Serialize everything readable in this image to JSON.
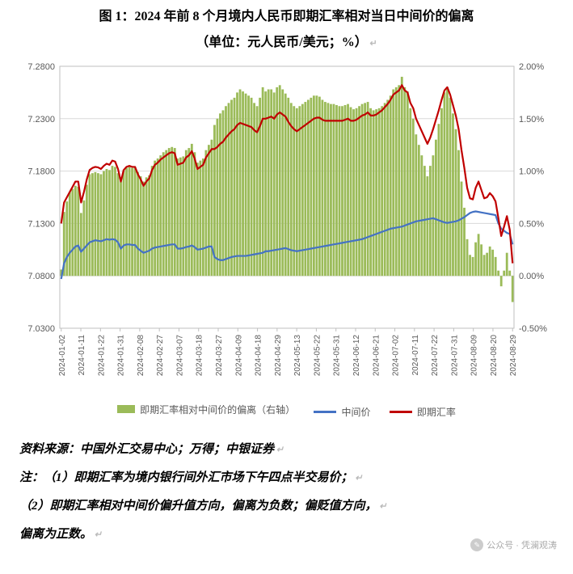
{
  "title": "图 1：2024 年前 8 个月境内人民币即期汇率相对当日中间价的偏离",
  "subtitle": "（单位：元人民币/美元；%）",
  "chart": {
    "type": "combo-bar-line-dual-axis",
    "background_color": "#ffffff",
    "grid_color": "#d9d9d9",
    "border_color": "#bfbfbf",
    "title_fontsize": 16,
    "axis_fontsize": 11,
    "x_label_fontsize": 10,
    "x_label_rotation": -90,
    "y_left": {
      "min": 7.03,
      "max": 7.28,
      "step": 0.05,
      "ticks": [
        "7.0300",
        "7.0800",
        "7.1300",
        "7.1800",
        "7.2300",
        "7.2800"
      ]
    },
    "y_right": {
      "min": -0.5,
      "max": 2.0,
      "step": 0.5,
      "ticks": [
        "-0.50%",
        "0.00%",
        "0.50%",
        "1.00%",
        "1.50%",
        "2.00%"
      ]
    },
    "x_ticks": [
      "2024-01-02",
      "2024-01-11",
      "2024-01-22",
      "2024-01-31",
      "2024-02-08",
      "2024-02-27",
      "2024-03-07",
      "2024-03-18",
      "2024-03-27",
      "2024-04-09",
      "2024-04-18",
      "2024-04-29",
      "2024-05-13",
      "2024-05-22",
      "2024-05-31",
      "2024-06-12",
      "2024-06-21",
      "2024-07-02",
      "2024-07-11",
      "2024-07-22",
      "2024-07-31",
      "2024-08-09",
      "2024-08-20",
      "2024-08-29"
    ],
    "legend": {
      "items": [
        {
          "label": "即期汇率相对中间价的偏离（右轴）",
          "type": "bar",
          "color": "#9bbb59"
        },
        {
          "label": "中间价",
          "type": "line",
          "color": "#4472c4"
        },
        {
          "label": "即期汇率",
          "type": "line",
          "color": "#c00000"
        }
      ]
    },
    "series": {
      "deviation_bars": {
        "color": "#9bbb59",
        "bar_width": 2.8,
        "values": [
          0.06,
          0.61,
          0.71,
          0.8,
          0.83,
          0.86,
          0.85,
          0.6,
          0.72,
          0.87,
          0.97,
          0.98,
          0.99,
          0.98,
          0.97,
          1.0,
          1.02,
          1.01,
          1.05,
          1.04,
          0.98,
          0.9,
          1.01,
          1.03,
          1.04,
          1.03,
          1.04,
          0.99,
          0.95,
          0.9,
          0.94,
          0.96,
          1.05,
          1.1,
          1.12,
          1.15,
          1.18,
          1.2,
          1.22,
          1.23,
          1.22,
          1.12,
          1.13,
          1.14,
          1.2,
          1.22,
          1.26,
          1.18,
          1.08,
          1.1,
          1.12,
          1.2,
          1.25,
          1.3,
          1.44,
          1.5,
          1.55,
          1.58,
          1.62,
          1.65,
          1.68,
          1.7,
          1.75,
          1.78,
          1.76,
          1.74,
          1.72,
          1.7,
          1.65,
          1.62,
          1.7,
          1.8,
          1.76,
          1.78,
          1.78,
          1.75,
          1.8,
          1.82,
          1.78,
          1.74,
          1.7,
          1.65,
          1.62,
          1.6,
          1.62,
          1.64,
          1.66,
          1.68,
          1.7,
          1.72,
          1.72,
          1.71,
          1.68,
          1.66,
          1.65,
          1.64,
          1.64,
          1.63,
          1.62,
          1.62,
          1.63,
          1.64,
          1.61,
          1.59,
          1.6,
          1.62,
          1.64,
          1.65,
          1.66,
          1.6,
          1.58,
          1.59,
          1.6,
          1.62,
          1.65,
          1.68,
          1.72,
          1.78,
          1.8,
          1.82,
          1.9,
          1.8,
          1.76,
          1.6,
          1.5,
          1.35,
          1.25,
          1.15,
          1.05,
          0.95,
          1.05,
          1.15,
          1.3,
          1.45,
          1.6,
          1.75,
          1.8,
          1.7,
          1.55,
          1.4,
          1.2,
          0.9,
          0.65,
          0.35,
          0.2,
          0.18,
          0.32,
          0.4,
          0.3,
          0.2,
          0.22,
          0.28,
          0.25,
          0.18,
          0.05,
          -0.1,
          0.05,
          0.22,
          0.05,
          -0.25
        ]
      },
      "midpoint_line": {
        "color": "#4472c4",
        "line_width": 2.2,
        "values": [
          7.077,
          7.092,
          7.098,
          7.102,
          7.105,
          7.108,
          7.109,
          7.103,
          7.106,
          7.109,
          7.112,
          7.113,
          7.114,
          7.1135,
          7.113,
          7.114,
          7.115,
          7.1145,
          7.115,
          7.1145,
          7.112,
          7.106,
          7.109,
          7.11,
          7.11,
          7.1095,
          7.1095,
          7.106,
          7.104,
          7.102,
          7.103,
          7.104,
          7.106,
          7.107,
          7.1075,
          7.108,
          7.1085,
          7.109,
          7.1095,
          7.11,
          7.11,
          7.106,
          7.106,
          7.1065,
          7.1075,
          7.108,
          7.109,
          7.1075,
          7.105,
          7.1055,
          7.106,
          7.107,
          7.108,
          7.108,
          7.098,
          7.096,
          7.095,
          7.095,
          7.096,
          7.097,
          7.098,
          7.0985,
          7.099,
          7.099,
          7.099,
          7.099,
          7.0995,
          7.1,
          7.1005,
          7.101,
          7.1015,
          7.102,
          7.1035,
          7.1035,
          7.104,
          7.1045,
          7.105,
          7.1055,
          7.106,
          7.1065,
          7.1055,
          7.1045,
          7.104,
          7.1035,
          7.104,
          7.1045,
          7.105,
          7.1055,
          7.106,
          7.1065,
          7.107,
          7.1075,
          7.108,
          7.1085,
          7.109,
          7.1095,
          7.11,
          7.1105,
          7.111,
          7.1115,
          7.112,
          7.1125,
          7.113,
          7.1135,
          7.114,
          7.1145,
          7.115,
          7.116,
          7.117,
          7.118,
          7.119,
          7.12,
          7.121,
          7.122,
          7.123,
          7.124,
          7.125,
          7.1255,
          7.126,
          7.1265,
          7.127,
          7.128,
          7.129,
          7.13,
          7.131,
          7.132,
          7.1325,
          7.133,
          7.1335,
          7.134,
          7.1345,
          7.135,
          7.134,
          7.133,
          7.132,
          7.131,
          7.1305,
          7.131,
          7.1315,
          7.132,
          7.133,
          7.1345,
          7.136,
          7.138,
          7.14,
          7.141,
          7.1415,
          7.141,
          7.1405,
          7.14,
          7.1395,
          7.139,
          7.1385,
          7.138,
          7.13,
          7.125,
          7.123,
          7.121,
          7.12,
          7.11
        ]
      },
      "spot_line": {
        "color": "#c00000",
        "line_width": 2.2,
        "values": [
          7.13,
          7.15,
          7.155,
          7.16,
          7.165,
          7.17,
          7.17,
          7.15,
          7.16,
          7.172,
          7.181,
          7.183,
          7.184,
          7.1835,
          7.182,
          7.185,
          7.187,
          7.186,
          7.19,
          7.189,
          7.182,
          7.17,
          7.181,
          7.184,
          7.185,
          7.184,
          7.184,
          7.177,
          7.172,
          7.166,
          7.17,
          7.173,
          7.181,
          7.186,
          7.188,
          7.191,
          7.193,
          7.195,
          7.197,
          7.198,
          7.197,
          7.186,
          7.187,
          7.188,
          7.193,
          7.195,
          7.199,
          7.192,
          7.182,
          7.184,
          7.186,
          7.193,
          7.197,
          7.201,
          7.201,
          7.203,
          7.206,
          7.208,
          7.212,
          7.215,
          7.218,
          7.22,
          7.224,
          7.226,
          7.225,
          7.224,
          7.223,
          7.222,
          7.219,
          7.217,
          7.223,
          7.23,
          7.23,
          7.231,
          7.232,
          7.23,
          7.234,
          7.236,
          7.234,
          7.232,
          7.227,
          7.223,
          7.22,
          7.218,
          7.22,
          7.222,
          7.224,
          7.226,
          7.228,
          7.23,
          7.231,
          7.231,
          7.229,
          7.228,
          7.228,
          7.228,
          7.228,
          7.228,
          7.228,
          7.228,
          7.229,
          7.23,
          7.228,
          7.228,
          7.229,
          7.231,
          7.233,
          7.234,
          7.236,
          7.233,
          7.233,
          7.234,
          7.236,
          7.238,
          7.241,
          7.244,
          7.248,
          7.253,
          7.255,
          7.257,
          7.262,
          7.257,
          7.255,
          7.245,
          7.24,
          7.23,
          7.224,
          7.218,
          7.212,
          7.206,
          7.212,
          7.22,
          7.229,
          7.238,
          7.248,
          7.257,
          7.26,
          7.253,
          7.243,
          7.233,
          7.22,
          7.2,
          7.183,
          7.164,
          7.154,
          7.153,
          7.164,
          7.17,
          7.162,
          7.154,
          7.155,
          7.159,
          7.156,
          7.151,
          7.135,
          7.118,
          7.127,
          7.137,
          7.124,
          7.092
        ]
      }
    }
  },
  "source_label": "资料来源：中国外汇交易中心；万得；中银证券",
  "note_prefix": "注：",
  "note1": "（1）即期汇率为境内银行间外汇市场下午四点半交易价；",
  "note2_a": "（2）即期汇率相对中间价偏升值方向，偏离为负数；偏贬值方向，",
  "note2_b": "偏离为正数。",
  "watermark": "公众号 · 凭澜观涛"
}
